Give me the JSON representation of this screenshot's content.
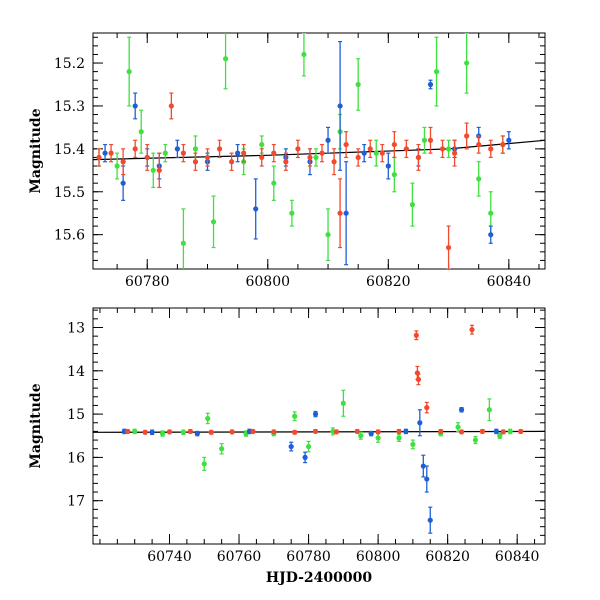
{
  "colors": {
    "green": "#40e040",
    "blue": "#1f5fd6",
    "red": "#f24a2e",
    "line": "#000000"
  },
  "chart_data": [
    {
      "type": "scatter",
      "title": "",
      "xlabel": "",
      "ylabel": "Magnitude",
      "xlim": [
        60771,
        60846
      ],
      "ylim": [
        15.68,
        15.13
      ],
      "y_inverted": true,
      "grid": false,
      "xticks": [
        60780,
        60800,
        60820,
        60840
      ],
      "xtick_labels": [
        "60780",
        "60800",
        "60820",
        "60840"
      ],
      "yticks": [
        15.2,
        15.3,
        15.4,
        15.5,
        15.6
      ],
      "ytick_labels": [
        "15.2",
        "15.3",
        "15.4",
        "15.5",
        "15.6"
      ],
      "model_line": {
        "x": [
          60771,
          60800,
          60830,
          60846
        ],
        "y": [
          15.425,
          15.415,
          15.4,
          15.38
        ]
      },
      "series": [
        {
          "color_key": "green",
          "points": [
            {
              "x": 60772,
              "y": 15.42,
              "err": 0.02
            },
            {
              "x": 60775,
              "y": 15.44,
              "err": 0.03
            },
            {
              "x": 60777,
              "y": 15.22,
              "err": 0.08
            },
            {
              "x": 60779,
              "y": 15.36,
              "err": 0.05
            },
            {
              "x": 60781,
              "y": 15.45,
              "err": 0.04
            },
            {
              "x": 60783,
              "y": 15.41,
              "err": 0.02
            },
            {
              "x": 60786,
              "y": 15.62,
              "err": 0.08
            },
            {
              "x": 60788,
              "y": 15.4,
              "err": 0.03
            },
            {
              "x": 60791,
              "y": 15.57,
              "err": 0.06
            },
            {
              "x": 60793,
              "y": 15.19,
              "err": 0.07
            },
            {
              "x": 60796,
              "y": 15.43,
              "err": 0.03
            },
            {
              "x": 60799,
              "y": 15.39,
              "err": 0.02
            },
            {
              "x": 60801,
              "y": 15.48,
              "err": 0.04
            },
            {
              "x": 60804,
              "y": 15.55,
              "err": 0.03
            },
            {
              "x": 60806,
              "y": 15.18,
              "err": 0.05
            },
            {
              "x": 60808,
              "y": 15.42,
              "err": 0.02
            },
            {
              "x": 60810,
              "y": 15.6,
              "err": 0.06
            },
            {
              "x": 60812,
              "y": 15.36,
              "err": 0.04
            },
            {
              "x": 60815,
              "y": 15.25,
              "err": 0.06
            },
            {
              "x": 60818,
              "y": 15.41,
              "err": 0.03
            },
            {
              "x": 60821,
              "y": 15.46,
              "err": 0.04
            },
            {
              "x": 60824,
              "y": 15.53,
              "err": 0.05
            },
            {
              "x": 60826,
              "y": 15.38,
              "err": 0.03
            },
            {
              "x": 60828,
              "y": 15.22,
              "err": 0.08
            },
            {
              "x": 60830,
              "y": 15.4,
              "err": 0.02
            },
            {
              "x": 60833,
              "y": 15.2,
              "err": 0.07
            },
            {
              "x": 60835,
              "y": 15.47,
              "err": 0.04
            },
            {
              "x": 60837,
              "y": 15.55,
              "err": 0.05
            },
            {
              "x": 60839,
              "y": 15.39,
              "err": 0.02
            }
          ]
        },
        {
          "color_key": "blue",
          "points": [
            {
              "x": 60773,
              "y": 15.41,
              "err": 0.02
            },
            {
              "x": 60776,
              "y": 15.48,
              "err": 0.04
            },
            {
              "x": 60778,
              "y": 15.3,
              "err": 0.03
            },
            {
              "x": 60780,
              "y": 15.42,
              "err": 0.02
            },
            {
              "x": 60782,
              "y": 15.44,
              "err": 0.03
            },
            {
              "x": 60785,
              "y": 15.4,
              "err": 0.02
            },
            {
              "x": 60790,
              "y": 15.43,
              "err": 0.02
            },
            {
              "x": 60795,
              "y": 15.41,
              "err": 0.02
            },
            {
              "x": 60798,
              "y": 15.54,
              "err": 0.07
            },
            {
              "x": 60803,
              "y": 15.42,
              "err": 0.02
            },
            {
              "x": 60807,
              "y": 15.43,
              "err": 0.03
            },
            {
              "x": 60810,
              "y": 15.38,
              "err": 0.03
            },
            {
              "x": 60812,
              "y": 15.3,
              "err": 0.15
            },
            {
              "x": 60813,
              "y": 15.55,
              "err": 0.12
            },
            {
              "x": 60816,
              "y": 15.41,
              "err": 0.02
            },
            {
              "x": 60820,
              "y": 15.44,
              "err": 0.03
            },
            {
              "x": 60825,
              "y": 15.42,
              "err": 0.02
            },
            {
              "x": 60827,
              "y": 15.25,
              "err": 0.01
            },
            {
              "x": 60831,
              "y": 15.4,
              "err": 0.02
            },
            {
              "x": 60835,
              "y": 15.37,
              "err": 0.02
            },
            {
              "x": 60837,
              "y": 15.6,
              "err": 0.02
            },
            {
              "x": 60840,
              "y": 15.38,
              "err": 0.02
            }
          ]
        },
        {
          "color_key": "red",
          "points": [
            {
              "x": 60772,
              "y": 15.42,
              "err": 0.02
            },
            {
              "x": 60774,
              "y": 15.41,
              "err": 0.02
            },
            {
              "x": 60776,
              "y": 15.43,
              "err": 0.03
            },
            {
              "x": 60778,
              "y": 15.4,
              "err": 0.02
            },
            {
              "x": 60780,
              "y": 15.42,
              "err": 0.03
            },
            {
              "x": 60782,
              "y": 15.45,
              "err": 0.04
            },
            {
              "x": 60784,
              "y": 15.3,
              "err": 0.03
            },
            {
              "x": 60786,
              "y": 15.41,
              "err": 0.02
            },
            {
              "x": 60788,
              "y": 15.43,
              "err": 0.02
            },
            {
              "x": 60790,
              "y": 15.42,
              "err": 0.02
            },
            {
              "x": 60792,
              "y": 15.4,
              "err": 0.02
            },
            {
              "x": 60794,
              "y": 15.43,
              "err": 0.02
            },
            {
              "x": 60796,
              "y": 15.41,
              "err": 0.02
            },
            {
              "x": 60799,
              "y": 15.42,
              "err": 0.02
            },
            {
              "x": 60801,
              "y": 15.41,
              "err": 0.02
            },
            {
              "x": 60803,
              "y": 15.43,
              "err": 0.02
            },
            {
              "x": 60805,
              "y": 15.4,
              "err": 0.02
            },
            {
              "x": 60807,
              "y": 15.42,
              "err": 0.02
            },
            {
              "x": 60809,
              "y": 15.41,
              "err": 0.02
            },
            {
              "x": 60811,
              "y": 15.43,
              "err": 0.03
            },
            {
              "x": 60813,
              "y": 15.39,
              "err": 0.03
            },
            {
              "x": 60815,
              "y": 15.42,
              "err": 0.02
            },
            {
              "x": 60817,
              "y": 15.4,
              "err": 0.02
            },
            {
              "x": 60819,
              "y": 15.41,
              "err": 0.02
            },
            {
              "x": 60821,
              "y": 15.39,
              "err": 0.03
            },
            {
              "x": 60823,
              "y": 15.4,
              "err": 0.02
            },
            {
              "x": 60825,
              "y": 15.42,
              "err": 0.03
            },
            {
              "x": 60827,
              "y": 15.38,
              "err": 0.03
            },
            {
              "x": 60829,
              "y": 15.4,
              "err": 0.02
            },
            {
              "x": 60831,
              "y": 15.41,
              "err": 0.03
            },
            {
              "x": 60833,
              "y": 15.37,
              "err": 0.03
            },
            {
              "x": 60835,
              "y": 15.39,
              "err": 0.02
            },
            {
              "x": 60837,
              "y": 15.4,
              "err": 0.02
            },
            {
              "x": 60839,
              "y": 15.39,
              "err": 0.02
            },
            {
              "x": 60812,
              "y": 15.55,
              "err": 0.08
            },
            {
              "x": 60830,
              "y": 15.63,
              "err": 0.05
            }
          ]
        }
      ]
    },
    {
      "type": "scatter",
      "title": "",
      "xlabel": "HJD-2400000",
      "ylabel": "Magnitude",
      "xlim": [
        60718,
        60848
      ],
      "ylim": [
        18.0,
        12.55
      ],
      "y_inverted": true,
      "grid": false,
      "xticks": [
        60740,
        60760,
        60780,
        60800,
        60820,
        60840
      ],
      "xtick_labels": [
        "60740",
        "60760",
        "60780",
        "60800",
        "60820",
        "60840"
      ],
      "yticks": [
        13,
        14,
        15,
        16,
        17
      ],
      "ytick_labels": [
        "13",
        "14",
        "15",
        "16",
        "17"
      ],
      "model_line": {
        "x": [
          60718,
          60848
        ],
        "y": [
          15.42,
          15.4
        ]
      },
      "series": [
        {
          "color_key": "green",
          "points": [
            {
              "x": 60730,
              "y": 15.4,
              "err": 0.05
            },
            {
              "x": 60738,
              "y": 15.45,
              "err": 0.06
            },
            {
              "x": 60744,
              "y": 15.42,
              "err": 0.05
            },
            {
              "x": 60750,
              "y": 16.15,
              "err": 0.15
            },
            {
              "x": 60751,
              "y": 15.1,
              "err": 0.12
            },
            {
              "x": 60755,
              "y": 15.8,
              "err": 0.12
            },
            {
              "x": 60762,
              "y": 15.45,
              "err": 0.06
            },
            {
              "x": 60770,
              "y": 15.45,
              "err": 0.05
            },
            {
              "x": 60776,
              "y": 15.05,
              "err": 0.1
            },
            {
              "x": 60780,
              "y": 15.75,
              "err": 0.12
            },
            {
              "x": 60787,
              "y": 15.4,
              "err": 0.08
            },
            {
              "x": 60790,
              "y": 14.75,
              "err": 0.3
            },
            {
              "x": 60795,
              "y": 15.5,
              "err": 0.08
            },
            {
              "x": 60800,
              "y": 15.55,
              "err": 0.1
            },
            {
              "x": 60806,
              "y": 15.55,
              "err": 0.08
            },
            {
              "x": 60810,
              "y": 15.7,
              "err": 0.1
            },
            {
              "x": 60818,
              "y": 15.45,
              "err": 0.05
            },
            {
              "x": 60823,
              "y": 15.3,
              "err": 0.1
            },
            {
              "x": 60828,
              "y": 15.6,
              "err": 0.08
            },
            {
              "x": 60832,
              "y": 14.9,
              "err": 0.25
            },
            {
              "x": 60835,
              "y": 15.5,
              "err": 0.06
            },
            {
              "x": 60838,
              "y": 15.4,
              "err": 0.05
            }
          ]
        },
        {
          "color_key": "blue",
          "points": [
            {
              "x": 60727,
              "y": 15.4,
              "err": 0.05
            },
            {
              "x": 60735,
              "y": 15.42,
              "err": 0.05
            },
            {
              "x": 60748,
              "y": 15.45,
              "err": 0.05
            },
            {
              "x": 60763,
              "y": 15.4,
              "err": 0.05
            },
            {
              "x": 60775,
              "y": 15.75,
              "err": 0.1
            },
            {
              "x": 60779,
              "y": 16.0,
              "err": 0.12
            },
            {
              "x": 60782,
              "y": 15.0,
              "err": 0.06
            },
            {
              "x": 60798,
              "y": 15.45,
              "err": 0.05
            },
            {
              "x": 60808,
              "y": 15.4,
              "err": 0.05
            },
            {
              "x": 60812,
              "y": 15.2,
              "err": 0.3
            },
            {
              "x": 60813,
              "y": 16.2,
              "err": 0.25
            },
            {
              "x": 60814,
              "y": 16.5,
              "err": 0.3
            },
            {
              "x": 60815,
              "y": 17.45,
              "err": 0.3
            },
            {
              "x": 60824,
              "y": 14.9,
              "err": 0.05
            },
            {
              "x": 60834,
              "y": 15.4,
              "err": 0.05
            }
          ]
        },
        {
          "color_key": "red",
          "points": [
            {
              "x": 60728,
              "y": 15.4,
              "err": 0.04
            },
            {
              "x": 60733,
              "y": 15.42,
              "err": 0.04
            },
            {
              "x": 60740,
              "y": 15.41,
              "err": 0.04
            },
            {
              "x": 60746,
              "y": 15.4,
              "err": 0.04
            },
            {
              "x": 60752,
              "y": 15.42,
              "err": 0.04
            },
            {
              "x": 60758,
              "y": 15.41,
              "err": 0.04
            },
            {
              "x": 60764,
              "y": 15.4,
              "err": 0.04
            },
            {
              "x": 60770,
              "y": 15.41,
              "err": 0.04
            },
            {
              "x": 60776,
              "y": 15.42,
              "err": 0.04
            },
            {
              "x": 60782,
              "y": 15.4,
              "err": 0.04
            },
            {
              "x": 60788,
              "y": 15.41,
              "err": 0.04
            },
            {
              "x": 60794,
              "y": 15.4,
              "err": 0.04
            },
            {
              "x": 60800,
              "y": 15.41,
              "err": 0.04
            },
            {
              "x": 60806,
              "y": 15.4,
              "err": 0.04
            },
            {
              "x": 60811,
              "y": 13.18,
              "err": 0.1
            },
            {
              "x": 60811.3,
              "y": 14.05,
              "err": 0.15
            },
            {
              "x": 60811.6,
              "y": 14.2,
              "err": 0.12
            },
            {
              "x": 60814,
              "y": 14.85,
              "err": 0.12
            },
            {
              "x": 60818,
              "y": 15.4,
              "err": 0.04
            },
            {
              "x": 60824,
              "y": 15.41,
              "err": 0.04
            },
            {
              "x": 60827,
              "y": 13.05,
              "err": 0.1
            },
            {
              "x": 60830,
              "y": 15.4,
              "err": 0.04
            },
            {
              "x": 60836,
              "y": 15.41,
              "err": 0.04
            },
            {
              "x": 60841,
              "y": 15.4,
              "err": 0.04
            }
          ]
        }
      ]
    }
  ]
}
